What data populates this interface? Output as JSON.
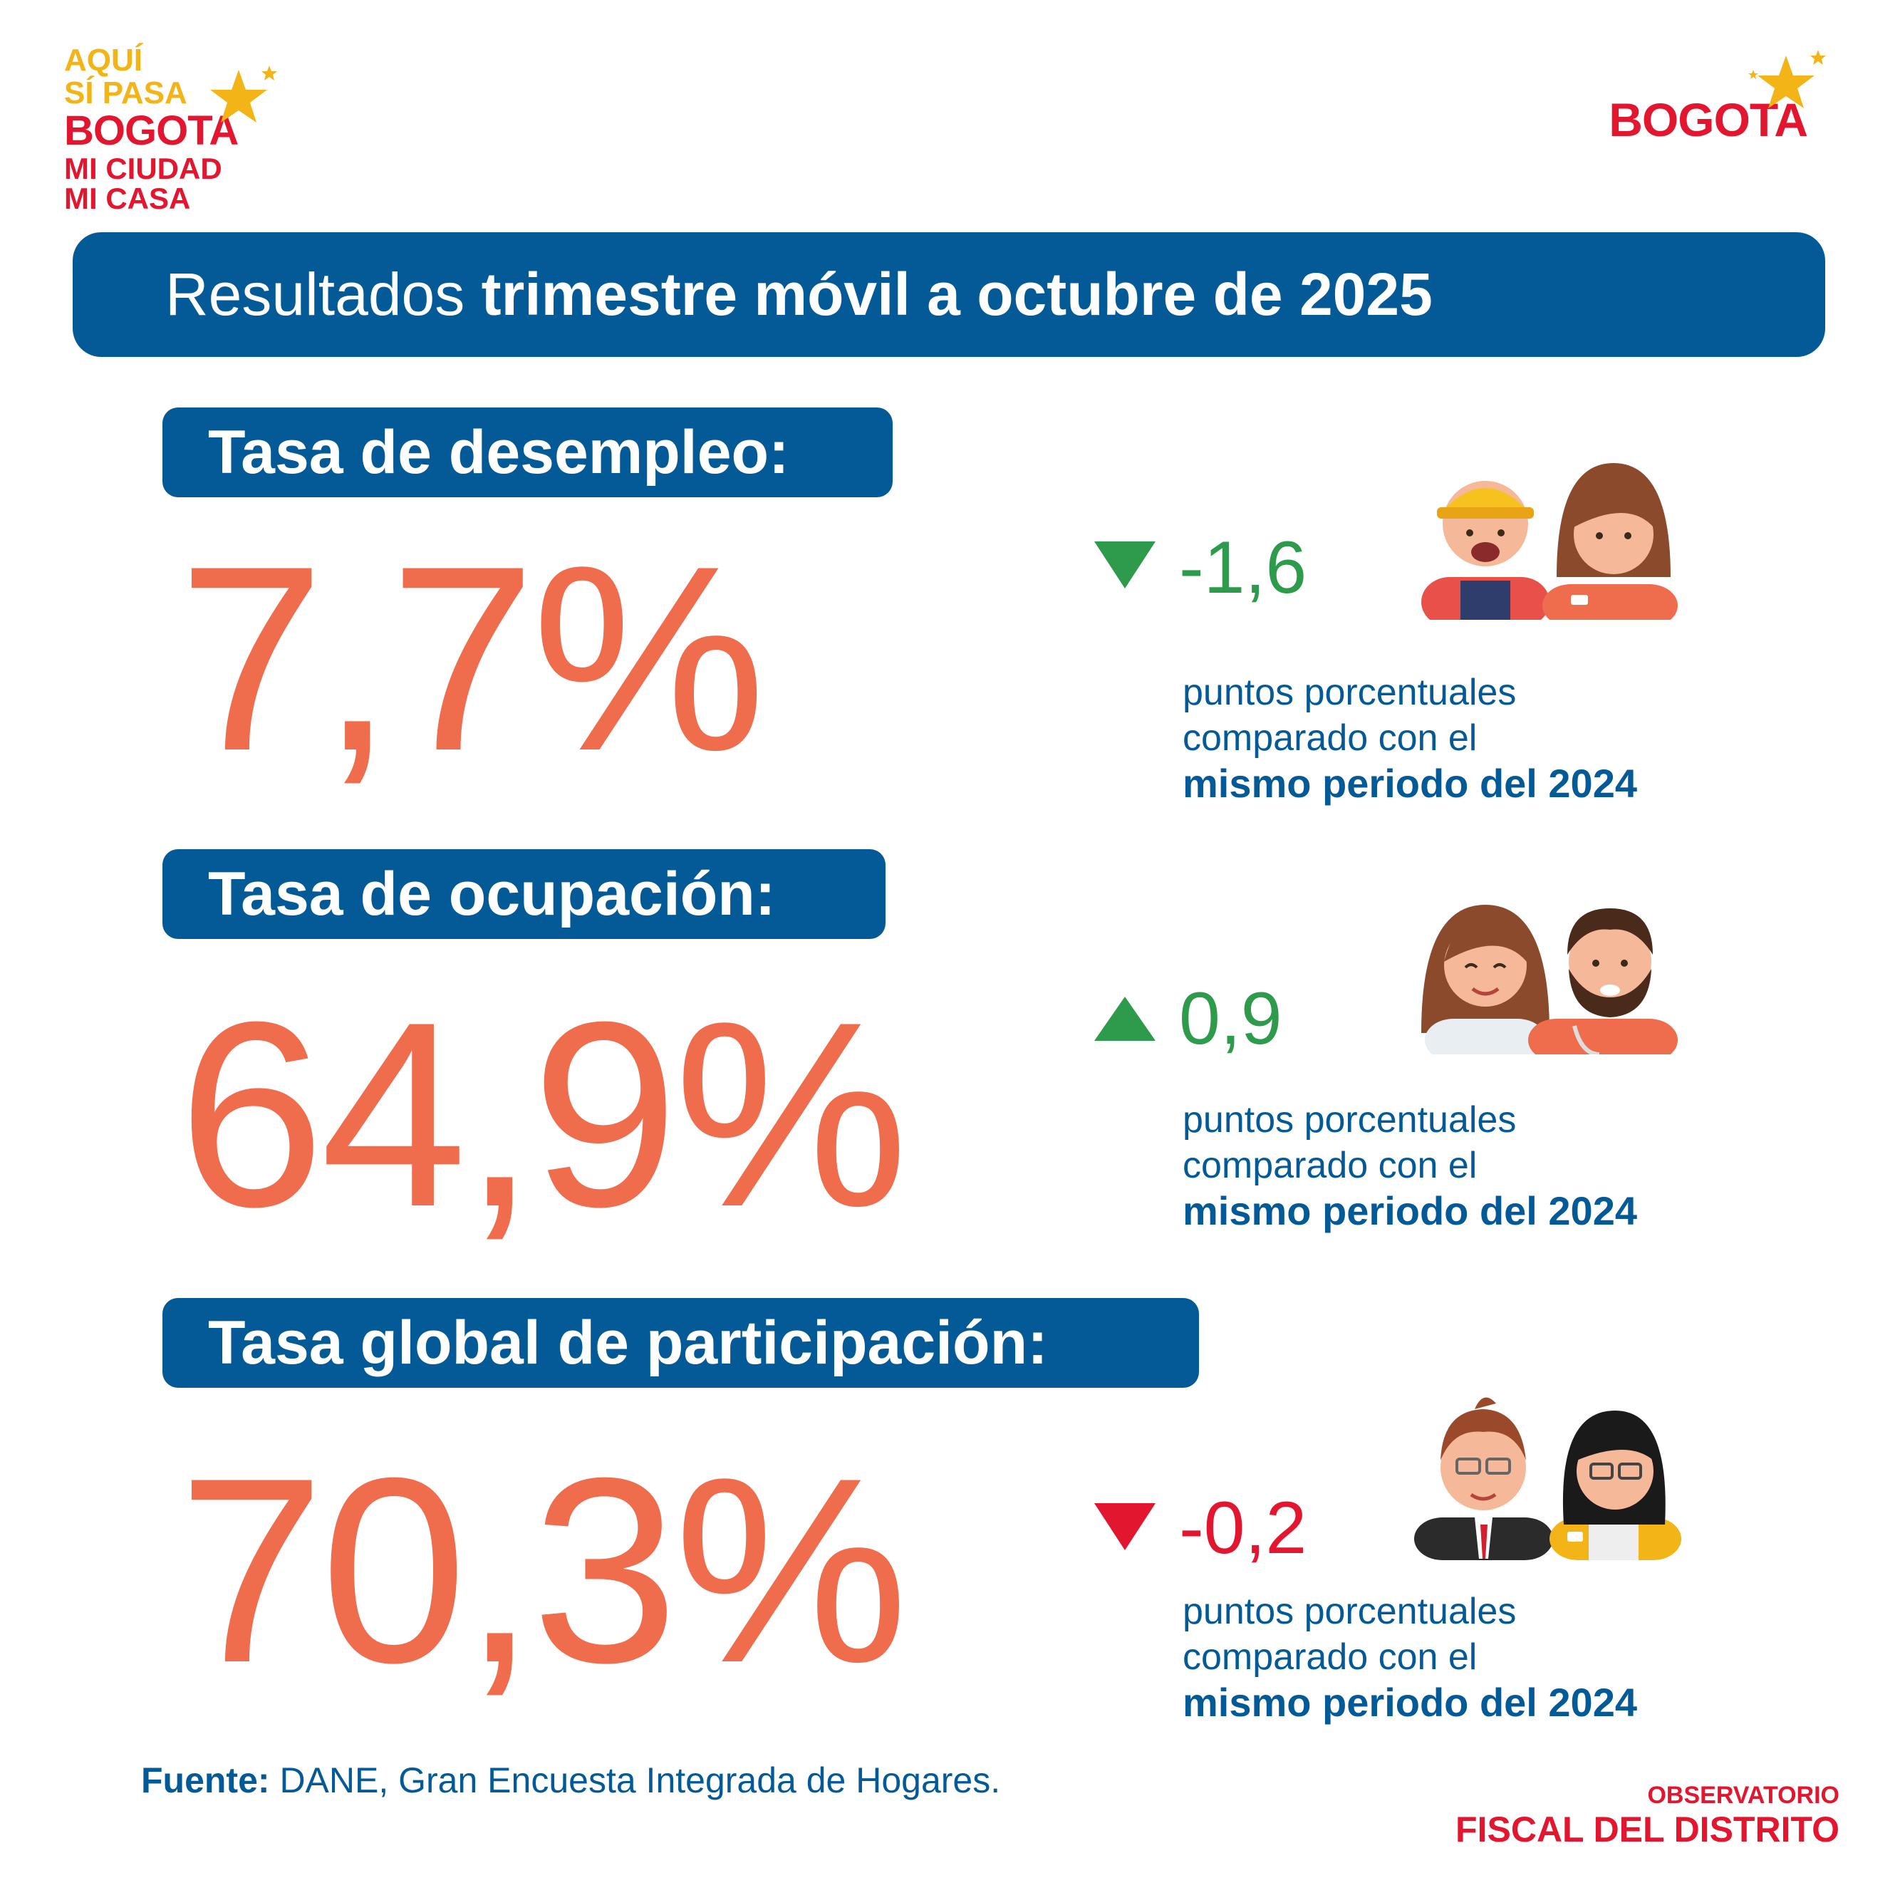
{
  "logos": {
    "campaign": {
      "line1": "AQUÍ",
      "line2": "SÍ PASA",
      "line3": "BOGOTA",
      "line4": "MI CIUDAD",
      "line5": "MI CASA"
    },
    "city": {
      "word": "BOGOTA"
    }
  },
  "header": {
    "title_light": "Resultados ",
    "title_bold": "trimestre móvil a octubre de 2025"
  },
  "indicators": [
    {
      "label": "Tasa de desempleo:",
      "value": "7,7%",
      "change": "-1,6",
      "direction": "down",
      "change_color": "#2e9a4b",
      "desc_line1": "puntos porcentuales",
      "desc_line2": "comparado con el",
      "desc_bold": "mismo periodo del 2024"
    },
    {
      "label": "Tasa de ocupación:",
      "value": "64,9%",
      "change": "0,9",
      "direction": "up",
      "change_color": "#2e9a4b",
      "desc_line1": "puntos porcentuales",
      "desc_line2": "comparado con el",
      "desc_bold": "mismo periodo del 2024"
    },
    {
      "label": "Tasa global de participación:",
      "value": "70,3%",
      "change": "-0,2",
      "direction": "down",
      "change_color": "#e2162e",
      "desc_line1": "puntos porcentuales",
      "desc_line2": "comparado con el",
      "desc_bold": "mismo periodo del 2024"
    }
  ],
  "footer": {
    "source_label": "Fuente:",
    "source_text": " DANE, Gran Encuesta Integrada de Hogares.",
    "org_line1": "OBSERVATORIO",
    "org_line2": "FISCAL DEL DISTRITO"
  },
  "colors": {
    "primary": "#045a96",
    "accent": "#ef6c4d",
    "positive": "#2e9a4b",
    "negative": "#e2162e",
    "star": "#f2b417"
  }
}
